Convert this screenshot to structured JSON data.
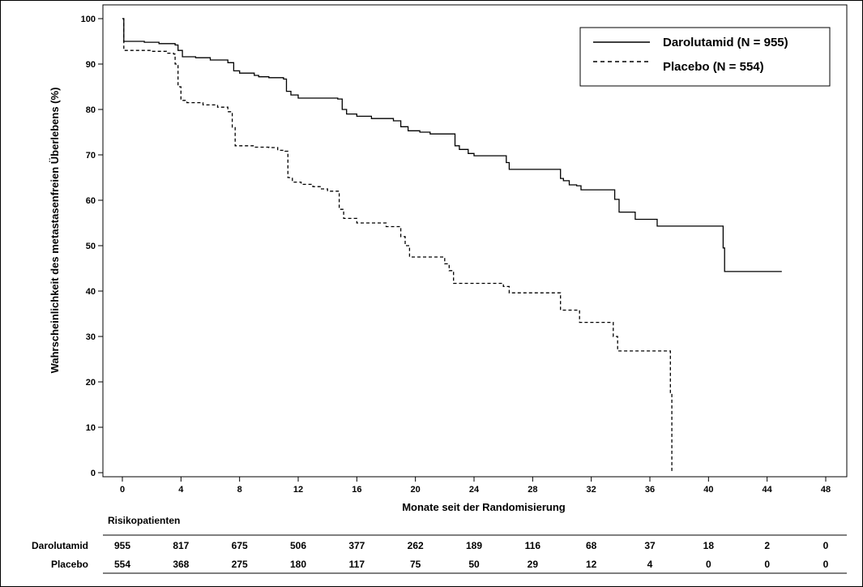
{
  "chart_data": {
    "type": "line",
    "title": "",
    "xlabel": "Monate seit der Randomisierung",
    "ylabel": "Wahrscheinlichkeit des metastasenfreien Überlebens (%)",
    "xlim": [
      0,
      48
    ],
    "ylim": [
      0,
      100
    ],
    "xticks": [
      0,
      4,
      8,
      12,
      16,
      20,
      24,
      28,
      32,
      36,
      40,
      44,
      48
    ],
    "yticks": [
      0,
      10,
      20,
      30,
      40,
      50,
      60,
      70,
      80,
      90,
      100
    ],
    "grid": false,
    "legend_position": "top-right",
    "series": [
      {
        "name": "Darolutamid (N = 955)",
        "style": "solid",
        "color": "#000000",
        "points": [
          [
            0,
            100
          ],
          [
            0.1,
            95
          ],
          [
            1.5,
            94.8
          ],
          [
            2.5,
            94.5
          ],
          [
            3.6,
            94.2
          ],
          [
            3.8,
            93
          ],
          [
            4.1,
            91.6
          ],
          [
            5,
            91.4
          ],
          [
            6,
            90.9
          ],
          [
            7.2,
            90.3
          ],
          [
            7.6,
            88.5
          ],
          [
            8,
            88
          ],
          [
            9,
            87.5
          ],
          [
            9.3,
            87.2
          ],
          [
            10,
            87
          ],
          [
            11,
            86.7
          ],
          [
            11.2,
            84
          ],
          [
            11.5,
            83.2
          ],
          [
            12,
            82.5
          ],
          [
            14.7,
            82.3
          ],
          [
            15,
            80
          ],
          [
            15.3,
            79
          ],
          [
            16,
            78.5
          ],
          [
            17,
            78
          ],
          [
            18.5,
            77.5
          ],
          [
            19,
            76.2
          ],
          [
            19.5,
            75.3
          ],
          [
            20.3,
            75
          ],
          [
            21,
            74.6
          ],
          [
            22.4,
            74.6
          ],
          [
            22.7,
            72
          ],
          [
            23,
            71.2
          ],
          [
            23.6,
            70.3
          ],
          [
            24,
            69.8
          ],
          [
            26,
            69.8
          ],
          [
            26.2,
            68.3
          ],
          [
            26.4,
            66.8
          ],
          [
            29.7,
            66.8
          ],
          [
            29.9,
            64.8
          ],
          [
            30.1,
            64.3
          ],
          [
            30.5,
            63.4
          ],
          [
            31,
            63.2
          ],
          [
            31.3,
            62.3
          ],
          [
            33.5,
            62.3
          ],
          [
            33.6,
            60.2
          ],
          [
            33.9,
            57.4
          ],
          [
            34.9,
            57.4
          ],
          [
            35,
            55.8
          ],
          [
            36.4,
            55.8
          ],
          [
            36.5,
            54.3
          ],
          [
            40.9,
            54.3
          ],
          [
            41,
            49.5
          ],
          [
            41.1,
            44.3
          ],
          [
            45,
            44.3
          ]
        ]
      },
      {
        "name": "Placebo (N = 554)",
        "style": "dashed",
        "color": "#000000",
        "points": [
          [
            0,
            100
          ],
          [
            0.1,
            93
          ],
          [
            2,
            92.8
          ],
          [
            3,
            92.4
          ],
          [
            3.5,
            92.2
          ],
          [
            3.6,
            90
          ],
          [
            3.8,
            85
          ],
          [
            4,
            82
          ],
          [
            4.4,
            81.5
          ],
          [
            5.5,
            81
          ],
          [
            6.5,
            80.5
          ],
          [
            7.2,
            79.5
          ],
          [
            7.5,
            76
          ],
          [
            7.7,
            72
          ],
          [
            9,
            71.7
          ],
          [
            10,
            71.6
          ],
          [
            10.6,
            71
          ],
          [
            11.1,
            70.8
          ],
          [
            11.3,
            65
          ],
          [
            11.6,
            64
          ],
          [
            12.2,
            63.5
          ],
          [
            13,
            63
          ],
          [
            13.5,
            62.5
          ],
          [
            14,
            62
          ],
          [
            14.6,
            62
          ],
          [
            14.8,
            58
          ],
          [
            15.1,
            56
          ],
          [
            16,
            55
          ],
          [
            17.5,
            55
          ],
          [
            18,
            54.2
          ],
          [
            18.8,
            54.2
          ],
          [
            19,
            52
          ],
          [
            19.3,
            50
          ],
          [
            19.6,
            47.5
          ],
          [
            21.6,
            47.5
          ],
          [
            22,
            46
          ],
          [
            22.3,
            44.5
          ],
          [
            22.6,
            41.7
          ],
          [
            25.3,
            41.7
          ],
          [
            26,
            41
          ],
          [
            26.4,
            39.6
          ],
          [
            29.6,
            39.6
          ],
          [
            29.9,
            35.8
          ],
          [
            31,
            35.8
          ],
          [
            31.2,
            33.1
          ],
          [
            33.3,
            33.1
          ],
          [
            33.5,
            30
          ],
          [
            33.8,
            26.8
          ],
          [
            37.3,
            26.8
          ],
          [
            37.4,
            17.5
          ],
          [
            37.5,
            0
          ]
        ]
      }
    ],
    "risk_table": {
      "title": "Risikopatienten",
      "timepoints": [
        0,
        4,
        8,
        12,
        16,
        20,
        24,
        28,
        32,
        36,
        40,
        44,
        48
      ],
      "rows": [
        {
          "label": "Darolutamid",
          "values": [
            "955",
            "817",
            "675",
            "506",
            "377",
            "262",
            "189",
            "116",
            "68",
            "37",
            "18",
            "2",
            "0"
          ]
        },
        {
          "label": "Placebo",
          "values": [
            "554",
            "368",
            "275",
            "180",
            "117",
            "75",
            "50",
            "29",
            "12",
            "4",
            "0",
            "0",
            "0"
          ]
        }
      ]
    }
  }
}
